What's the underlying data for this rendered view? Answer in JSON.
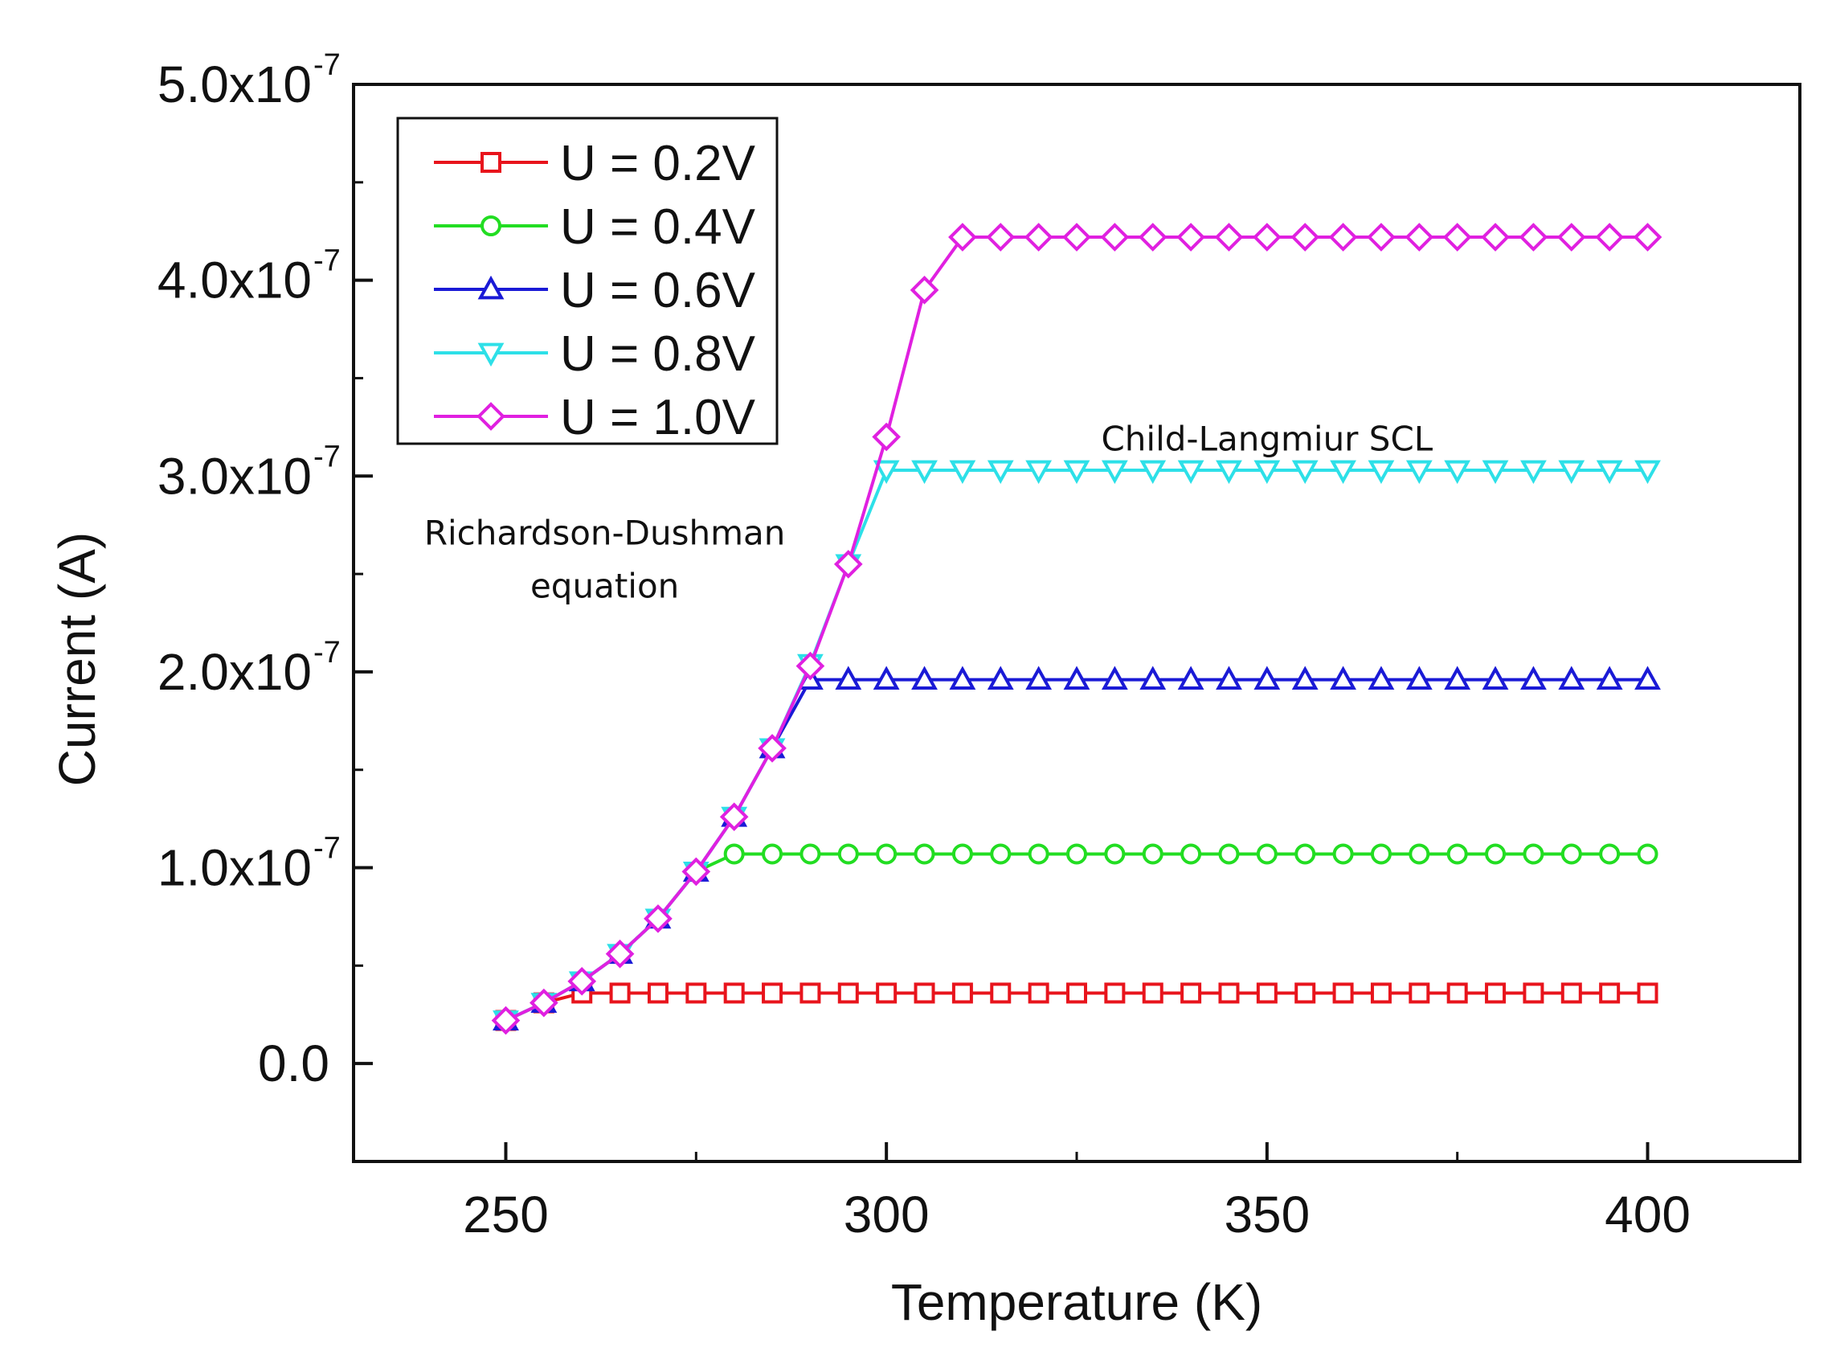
{
  "chart_data": {
    "type": "line",
    "title": "",
    "xlabel": "Temperature (K)",
    "ylabel": "Current (A)",
    "xlim": [
      230,
      420
    ],
    "ylim": [
      -5e-08,
      5e-07
    ],
    "xticks": [
      250,
      300,
      350,
      400
    ],
    "xtick_labels": [
      "250",
      "300",
      "350",
      "400"
    ],
    "yticks": [
      0,
      1e-07,
      2e-07,
      3e-07,
      4e-07,
      5e-07
    ],
    "ytick_labels": [
      {
        "base": "0.0",
        "exp": ""
      },
      {
        "base": "1.0x10",
        "exp": "-7"
      },
      {
        "base": "2.0x10",
        "exp": "-7"
      },
      {
        "base": "3.0x10",
        "exp": "-7"
      },
      {
        "base": "4.0x10",
        "exp": "-7"
      },
      {
        "base": "5.0x10",
        "exp": "-7"
      }
    ],
    "legend_position": "top-left",
    "x": [
      250,
      255,
      260,
      265,
      270,
      275,
      280,
      285,
      290,
      295,
      300,
      305,
      310,
      315,
      320,
      325,
      330,
      335,
      340,
      345,
      350,
      355,
      360,
      365,
      370,
      375,
      380,
      385,
      390,
      395,
      400
    ],
    "series": [
      {
        "name": "U = 0.2V",
        "color": "#e8141c",
        "marker": "square",
        "values": [
          2.2e-08,
          3.1e-08,
          3.6e-08,
          3.6e-08,
          3.6e-08,
          3.6e-08,
          3.6e-08,
          3.6e-08,
          3.6e-08,
          3.6e-08,
          3.6e-08,
          3.6e-08,
          3.6e-08,
          3.6e-08,
          3.6e-08,
          3.6e-08,
          3.6e-08,
          3.6e-08,
          3.6e-08,
          3.6e-08,
          3.6e-08,
          3.6e-08,
          3.6e-08,
          3.6e-08,
          3.6e-08,
          3.6e-08,
          3.6e-08,
          3.6e-08,
          3.6e-08,
          3.6e-08,
          3.6e-08
        ]
      },
      {
        "name": "U = 0.4V",
        "color": "#22dd22",
        "marker": "circle",
        "values": [
          2.2e-08,
          3.1e-08,
          4.2e-08,
          5.6e-08,
          7.4e-08,
          9.8e-08,
          1.07e-07,
          1.07e-07,
          1.07e-07,
          1.07e-07,
          1.07e-07,
          1.07e-07,
          1.07e-07,
          1.07e-07,
          1.07e-07,
          1.07e-07,
          1.07e-07,
          1.07e-07,
          1.07e-07,
          1.07e-07,
          1.07e-07,
          1.07e-07,
          1.07e-07,
          1.07e-07,
          1.07e-07,
          1.07e-07,
          1.07e-07,
          1.07e-07,
          1.07e-07,
          1.07e-07,
          1.07e-07
        ]
      },
      {
        "name": "U = 0.6V",
        "color": "#1a1ad6",
        "marker": "triangle-up",
        "values": [
          2.2e-08,
          3.1e-08,
          4.2e-08,
          5.6e-08,
          7.4e-08,
          9.8e-08,
          1.26e-07,
          1.61e-07,
          1.96e-07,
          1.96e-07,
          1.96e-07,
          1.96e-07,
          1.96e-07,
          1.96e-07,
          1.96e-07,
          1.96e-07,
          1.96e-07,
          1.96e-07,
          1.96e-07,
          1.96e-07,
          1.96e-07,
          1.96e-07,
          1.96e-07,
          1.96e-07,
          1.96e-07,
          1.96e-07,
          1.96e-07,
          1.96e-07,
          1.96e-07,
          1.96e-07,
          1.96e-07
        ]
      },
      {
        "name": "U = 0.8V",
        "color": "#2de0e8",
        "marker": "triangle-down",
        "values": [
          2.2e-08,
          3.1e-08,
          4.2e-08,
          5.6e-08,
          7.4e-08,
          9.8e-08,
          1.26e-07,
          1.61e-07,
          2.04e-07,
          2.55e-07,
          3.03e-07,
          3.03e-07,
          3.03e-07,
          3.03e-07,
          3.03e-07,
          3.03e-07,
          3.03e-07,
          3.03e-07,
          3.03e-07,
          3.03e-07,
          3.03e-07,
          3.03e-07,
          3.03e-07,
          3.03e-07,
          3.03e-07,
          3.03e-07,
          3.03e-07,
          3.03e-07,
          3.03e-07,
          3.03e-07,
          3.03e-07
        ]
      },
      {
        "name": "U = 1.0V",
        "color": "#e020e0",
        "marker": "diamond",
        "values": [
          2.2e-08,
          3.1e-08,
          4.2e-08,
          5.6e-08,
          7.4e-08,
          9.8e-08,
          1.26e-07,
          1.61e-07,
          2.03e-07,
          2.55e-07,
          3.2e-07,
          3.95e-07,
          4.22e-07,
          4.22e-07,
          4.22e-07,
          4.22e-07,
          4.22e-07,
          4.22e-07,
          4.22e-07,
          4.22e-07,
          4.22e-07,
          4.22e-07,
          4.22e-07,
          4.22e-07,
          4.22e-07,
          4.22e-07,
          4.22e-07,
          4.22e-07,
          4.22e-07,
          4.22e-07,
          4.22e-07
        ]
      }
    ],
    "annotations": [
      {
        "lines": [
          "Richardson-Dushman",
          "equation"
        ],
        "x": 263,
        "y": 2.65e-07
      },
      {
        "lines": [
          "Child-Langmiur SCL"
        ],
        "x": 350,
        "y": 3.13e-07
      }
    ]
  }
}
